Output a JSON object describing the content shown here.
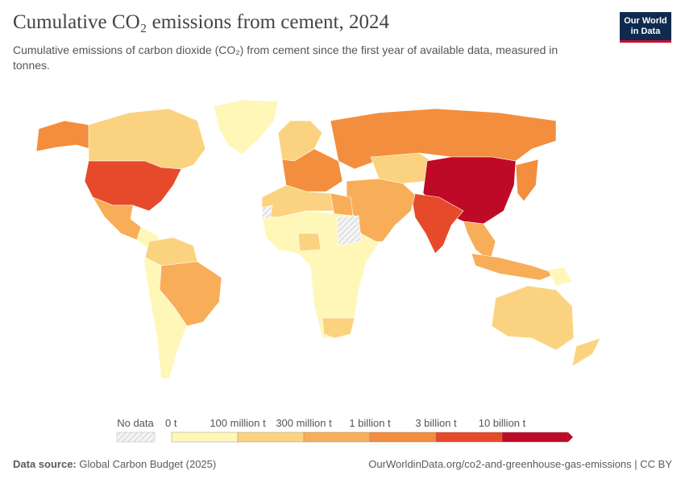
{
  "header": {
    "title": "Cumulative CO₂ emissions from cement, 2024",
    "subtitle": "Cumulative emissions of carbon dioxide (CO₂) from cement since the first year of available data, measured in tonnes.",
    "logo_line1": "Our World",
    "logo_line2": "in Data"
  },
  "legend": {
    "no_data": "No data",
    "labels": [
      "0 t",
      "100 million t",
      "300 million t",
      "1 billion t",
      "3 billion t",
      "10 billion t"
    ],
    "colors": [
      "#fef7b8",
      "#fbd380",
      "#f8ad58",
      "#f38e3e",
      "#e64a2a",
      "#be0a26"
    ]
  },
  "footer": {
    "source_label": "Data source:",
    "source": "Global Carbon Budget (2025)",
    "url": "OurWorldinData.org/co2-and-greenhouse-gas-emissions | CC BY"
  }
}
